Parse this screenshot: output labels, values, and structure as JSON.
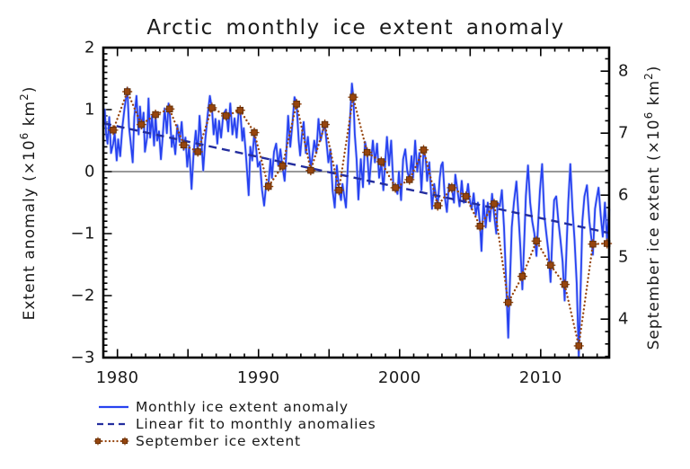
{
  "chart_data": {
    "type": "line",
    "title": "Arctic monthly ice extent anomaly",
    "x_axis": {
      "range": [
        1979.0,
        2014.85
      ],
      "labeled_ticks": [
        1980,
        1990,
        2000,
        2010
      ],
      "minor_tick_step_years": 1,
      "medium_tick_step_years": 5
    },
    "left_axis": {
      "label_parts": [
        [
          "Extent anomaly (×10",
          false
        ],
        [
          "6",
          true
        ],
        [
          " km",
          false
        ],
        [
          "2",
          true
        ],
        [
          ")",
          false
        ]
      ],
      "ticks": [
        2,
        1,
        0,
        -1,
        -2,
        -3
      ],
      "range": [
        -3,
        2
      ],
      "minor_step": 0.1
    },
    "right_axis": {
      "label_parts": [
        [
          "September ice extent (×10",
          false
        ],
        [
          "6",
          true
        ],
        [
          " km",
          false
        ],
        [
          "2",
          true
        ],
        [
          ")",
          false
        ]
      ],
      "ticks": [
        8,
        7,
        6,
        5,
        4
      ],
      "minor_step": 0.2,
      "anomaly_zero_extent": 6.38
    },
    "grid": "none",
    "zero_line": 0,
    "legend_position": "below-left",
    "series": [
      {
        "name": "Monthly ice extent anomaly",
        "style": "solid",
        "axis": "left",
        "points": [
          [
            1979.0,
            0.72
          ],
          [
            1979.1,
            1.0
          ],
          [
            1979.2,
            0.62
          ],
          [
            1979.3,
            0.45
          ],
          [
            1979.42,
            0.88
          ],
          [
            1979.55,
            0.3
          ],
          [
            1979.7,
            0.45
          ],
          [
            1979.8,
            0.62
          ],
          [
            1979.95,
            0.18
          ],
          [
            1980.05,
            0.52
          ],
          [
            1980.2,
            0.25
          ],
          [
            1980.35,
            0.72
          ],
          [
            1980.5,
            1.02
          ],
          [
            1980.62,
            1.2
          ],
          [
            1980.7,
            1.35
          ],
          [
            1980.82,
            0.72
          ],
          [
            1980.95,
            0.45
          ],
          [
            1981.08,
            0.15
          ],
          [
            1981.2,
            0.88
          ],
          [
            1981.35,
            1.22
          ],
          [
            1981.5,
            0.6
          ],
          [
            1981.6,
            1.05
          ],
          [
            1981.72,
            0.7
          ],
          [
            1981.85,
            0.95
          ],
          [
            1981.95,
            0.32
          ],
          [
            1982.1,
            0.55
          ],
          [
            1982.2,
            1.18
          ],
          [
            1982.32,
            0.55
          ],
          [
            1982.45,
            0.9
          ],
          [
            1982.6,
            0.42
          ],
          [
            1982.7,
            0.9
          ],
          [
            1982.82,
            0.5
          ],
          [
            1982.95,
            0.65
          ],
          [
            1983.08,
            0.2
          ],
          [
            1983.2,
            0.55
          ],
          [
            1983.35,
            1.02
          ],
          [
            1983.5,
            0.62
          ],
          [
            1983.62,
            1.1
          ],
          [
            1983.72,
            0.9
          ],
          [
            1983.85,
            0.4
          ],
          [
            1983.95,
            0.58
          ],
          [
            1984.1,
            0.28
          ],
          [
            1984.25,
            0.75
          ],
          [
            1984.4,
            0.48
          ],
          [
            1984.55,
            0.8
          ],
          [
            1984.7,
            0.35
          ],
          [
            1984.82,
            0.55
          ],
          [
            1984.95,
            0.08
          ],
          [
            1985.08,
            0.42
          ],
          [
            1985.25,
            -0.28
          ],
          [
            1985.4,
            0.3
          ],
          [
            1985.55,
            0.66
          ],
          [
            1985.7,
            0.3
          ],
          [
            1985.82,
            0.9
          ],
          [
            1985.95,
            0.5
          ],
          [
            1986.08,
            0.02
          ],
          [
            1986.22,
            0.5
          ],
          [
            1986.4,
            0.92
          ],
          [
            1986.55,
            1.22
          ],
          [
            1986.7,
            1.02
          ],
          [
            1986.82,
            0.6
          ],
          [
            1986.95,
            0.85
          ],
          [
            1987.08,
            0.45
          ],
          [
            1987.2,
            0.82
          ],
          [
            1987.35,
            0.55
          ],
          [
            1987.5,
            0.92
          ],
          [
            1987.7,
            1.0
          ],
          [
            1987.85,
            0.65
          ],
          [
            1988.0,
            1.1
          ],
          [
            1988.15,
            0.6
          ],
          [
            1988.3,
            0.86
          ],
          [
            1988.45,
            0.55
          ],
          [
            1988.6,
            1.0
          ],
          [
            1988.72,
            0.95
          ],
          [
            1988.85,
            0.5
          ],
          [
            1988.95,
            0.7
          ],
          [
            1989.1,
            0.3
          ],
          [
            1989.3,
            -0.38
          ],
          [
            1989.42,
            0.4
          ],
          [
            1989.55,
            0.18
          ],
          [
            1989.7,
            0.62
          ],
          [
            1989.82,
            0.4
          ],
          [
            1989.95,
            0.08
          ],
          [
            1990.1,
            0.16
          ],
          [
            1990.25,
            -0.3
          ],
          [
            1990.4,
            -0.55
          ],
          [
            1990.55,
            -0.18
          ],
          [
            1990.7,
            -0.22
          ],
          [
            1990.85,
            0.2
          ],
          [
            1990.95,
            -0.1
          ],
          [
            1991.1,
            0.32
          ],
          [
            1991.25,
            0.45
          ],
          [
            1991.4,
            0.1
          ],
          [
            1991.55,
            0.36
          ],
          [
            1991.7,
            0.08
          ],
          [
            1991.85,
            -0.15
          ],
          [
            1991.95,
            0.22
          ],
          [
            1992.1,
            0.9
          ],
          [
            1992.25,
            0.4
          ],
          [
            1992.4,
            0.76
          ],
          [
            1992.55,
            1.2
          ],
          [
            1992.7,
            1.1
          ],
          [
            1992.85,
            0.5
          ],
          [
            1992.95,
            0.26
          ],
          [
            1993.08,
            0.6
          ],
          [
            1993.2,
            0.8
          ],
          [
            1993.35,
            0.3
          ],
          [
            1993.5,
            0.56
          ],
          [
            1993.7,
            0.05
          ],
          [
            1993.85,
            0.3
          ],
          [
            1993.95,
            0.5
          ],
          [
            1994.1,
            0.3
          ],
          [
            1994.25,
            0.85
          ],
          [
            1994.4,
            0.5
          ],
          [
            1994.55,
            0.66
          ],
          [
            1994.7,
            0.76
          ],
          [
            1994.85,
            0.4
          ],
          [
            1994.95,
            0.15
          ],
          [
            1995.1,
            0.36
          ],
          [
            1995.25,
            -0.3
          ],
          [
            1995.4,
            -0.58
          ],
          [
            1995.55,
            0.1
          ],
          [
            1995.7,
            -0.28
          ],
          [
            1995.85,
            -0.46
          ],
          [
            1995.95,
            -0.2
          ],
          [
            1996.08,
            -0.4
          ],
          [
            1996.2,
            -0.58
          ],
          [
            1996.35,
            0.2
          ],
          [
            1996.5,
            0.9
          ],
          [
            1996.62,
            1.42
          ],
          [
            1996.72,
            1.2
          ],
          [
            1996.82,
            0.6
          ],
          [
            1996.95,
            0.2
          ],
          [
            1997.08,
            -0.45
          ],
          [
            1997.25,
            0.2
          ],
          [
            1997.4,
            -0.25
          ],
          [
            1997.55,
            0.48
          ],
          [
            1997.7,
            0.3
          ],
          [
            1997.85,
            -0.2
          ],
          [
            1997.95,
            0.1
          ],
          [
            1998.1,
            0.5
          ],
          [
            1998.25,
            0.15
          ],
          [
            1998.4,
            0.45
          ],
          [
            1998.55,
            -0.1
          ],
          [
            1998.7,
            0.16
          ],
          [
            1998.85,
            -0.3
          ],
          [
            1998.95,
            0.05
          ],
          [
            1999.1,
            0.56
          ],
          [
            1999.25,
            0.1
          ],
          [
            1999.4,
            0.5
          ],
          [
            1999.55,
            -0.2
          ],
          [
            1999.7,
            -0.26
          ],
          [
            1999.85,
            -0.36
          ],
          [
            1999.95,
            0.0
          ],
          [
            2000.1,
            -0.46
          ],
          [
            2000.25,
            0.2
          ],
          [
            2000.4,
            0.36
          ],
          [
            2000.55,
            0.0
          ],
          [
            2000.7,
            -0.12
          ],
          [
            2000.85,
            0.25
          ],
          [
            2000.95,
            -0.1
          ],
          [
            2001.1,
            0.5
          ],
          [
            2001.25,
            0.0
          ],
          [
            2001.4,
            0.3
          ],
          [
            2001.55,
            -0.3
          ],
          [
            2001.7,
            0.35
          ],
          [
            2001.85,
            0.2
          ],
          [
            2001.95,
            -0.15
          ],
          [
            2002.1,
            0.15
          ],
          [
            2002.3,
            -0.6
          ],
          [
            2002.45,
            -0.2
          ],
          [
            2002.6,
            -0.42
          ],
          [
            2002.7,
            -0.55
          ],
          [
            2002.85,
            -0.1
          ],
          [
            2002.95,
            0.1
          ],
          [
            2003.05,
            0.15
          ],
          [
            2003.2,
            -0.4
          ],
          [
            2003.35,
            -0.65
          ],
          [
            2003.5,
            -0.2
          ],
          [
            2003.7,
            -0.26
          ],
          [
            2003.85,
            -0.5
          ],
          [
            2003.95,
            -0.05
          ],
          [
            2004.1,
            -0.3
          ],
          [
            2004.25,
            -0.56
          ],
          [
            2004.4,
            -0.15
          ],
          [
            2004.55,
            -0.5
          ],
          [
            2004.7,
            -0.44
          ],
          [
            2004.85,
            -0.2
          ],
          [
            2004.95,
            -0.42
          ],
          [
            2005.1,
            -0.6
          ],
          [
            2005.25,
            -0.35
          ],
          [
            2005.4,
            -0.7
          ],
          [
            2005.55,
            -0.5
          ],
          [
            2005.7,
            -0.86
          ],
          [
            2005.8,
            -1.28
          ],
          [
            2005.95,
            -0.46
          ],
          [
            2006.1,
            -0.9
          ],
          [
            2006.25,
            -0.5
          ],
          [
            2006.4,
            -0.8
          ],
          [
            2006.55,
            -0.36
          ],
          [
            2006.7,
            -0.7
          ],
          [
            2006.85,
            -1.0
          ],
          [
            2006.95,
            -0.5
          ],
          [
            2007.1,
            -0.56
          ],
          [
            2007.25,
            -0.3
          ],
          [
            2007.4,
            -0.9
          ],
          [
            2007.55,
            -1.8
          ],
          [
            2007.7,
            -2.68
          ],
          [
            2007.8,
            -1.9
          ],
          [
            2007.95,
            -0.9
          ],
          [
            2008.1,
            -0.5
          ],
          [
            2008.28,
            -0.16
          ],
          [
            2008.45,
            -0.8
          ],
          [
            2008.55,
            -1.2
          ],
          [
            2008.7,
            -1.9
          ],
          [
            2008.85,
            -1.0
          ],
          [
            2008.95,
            -0.4
          ],
          [
            2009.1,
            0.1
          ],
          [
            2009.25,
            -0.5
          ],
          [
            2009.4,
            -0.8
          ],
          [
            2009.55,
            -1.0
          ],
          [
            2009.7,
            -1.36
          ],
          [
            2009.85,
            -0.7
          ],
          [
            2009.95,
            -0.3
          ],
          [
            2010.1,
            0.12
          ],
          [
            2010.25,
            -0.7
          ],
          [
            2010.4,
            -1.0
          ],
          [
            2010.55,
            -1.3
          ],
          [
            2010.7,
            -1.78
          ],
          [
            2010.85,
            -0.9
          ],
          [
            2010.95,
            -0.46
          ],
          [
            2011.1,
            -0.4
          ],
          [
            2011.25,
            -0.8
          ],
          [
            2011.4,
            -1.1
          ],
          [
            2011.55,
            -1.45
          ],
          [
            2011.7,
            -2.08
          ],
          [
            2011.85,
            -1.1
          ],
          [
            2011.95,
            -0.5
          ],
          [
            2012.1,
            0.12
          ],
          [
            2012.25,
            -0.6
          ],
          [
            2012.4,
            -1.1
          ],
          [
            2012.55,
            -1.8
          ],
          [
            2012.7,
            -2.98
          ],
          [
            2012.85,
            -1.7
          ],
          [
            2012.95,
            -0.8
          ],
          [
            2013.1,
            -0.4
          ],
          [
            2013.28,
            -0.22
          ],
          [
            2013.45,
            -0.8
          ],
          [
            2013.6,
            -1.1
          ],
          [
            2013.7,
            -1.34
          ],
          [
            2013.85,
            -0.6
          ],
          [
            2013.95,
            -0.45
          ],
          [
            2014.1,
            -0.26
          ],
          [
            2014.25,
            -0.7
          ],
          [
            2014.4,
            -1.05
          ],
          [
            2014.55,
            -0.5
          ],
          [
            2014.7,
            -1.1
          ],
          [
            2014.85,
            -0.6
          ]
        ]
      },
      {
        "name": "Linear fit to monthly anomalies",
        "style": "dashed",
        "axis": "left",
        "points": [
          [
            1979.0,
            0.78
          ],
          [
            2014.85,
            -0.99
          ]
        ]
      },
      {
        "name": "September ice extent",
        "style": "dotted-markers",
        "axis": "right",
        "month_offset": 0.7,
        "years": [
          1979,
          1980,
          1981,
          1982,
          1983,
          1984,
          1985,
          1986,
          1987,
          1988,
          1989,
          1990,
          1991,
          1992,
          1993,
          1994,
          1995,
          1996,
          1997,
          1998,
          1999,
          2000,
          2001,
          2002,
          2003,
          2004,
          2005,
          2006,
          2007,
          2008,
          2009,
          2010,
          2011,
          2012,
          2013,
          2014
        ],
        "values": [
          7.05,
          7.67,
          7.14,
          7.3,
          7.39,
          6.81,
          6.7,
          7.41,
          7.28,
          7.37,
          7.01,
          6.14,
          6.47,
          7.47,
          6.4,
          7.14,
          6.08,
          7.58,
          6.69,
          6.54,
          6.12,
          6.25,
          6.73,
          5.83,
          6.12,
          5.98,
          5.5,
          5.86,
          4.27,
          4.69,
          5.26,
          4.87,
          4.56,
          3.57,
          5.21,
          5.22
        ]
      }
    ],
    "colors": {
      "monthly": "#2742f0",
      "monthly_halo": "#a9baf7",
      "trend": "#232d9e",
      "september": "#96450e",
      "marker_edge": "#5e2d07",
      "axis": "#000000",
      "text": "#1a1a1a"
    }
  }
}
